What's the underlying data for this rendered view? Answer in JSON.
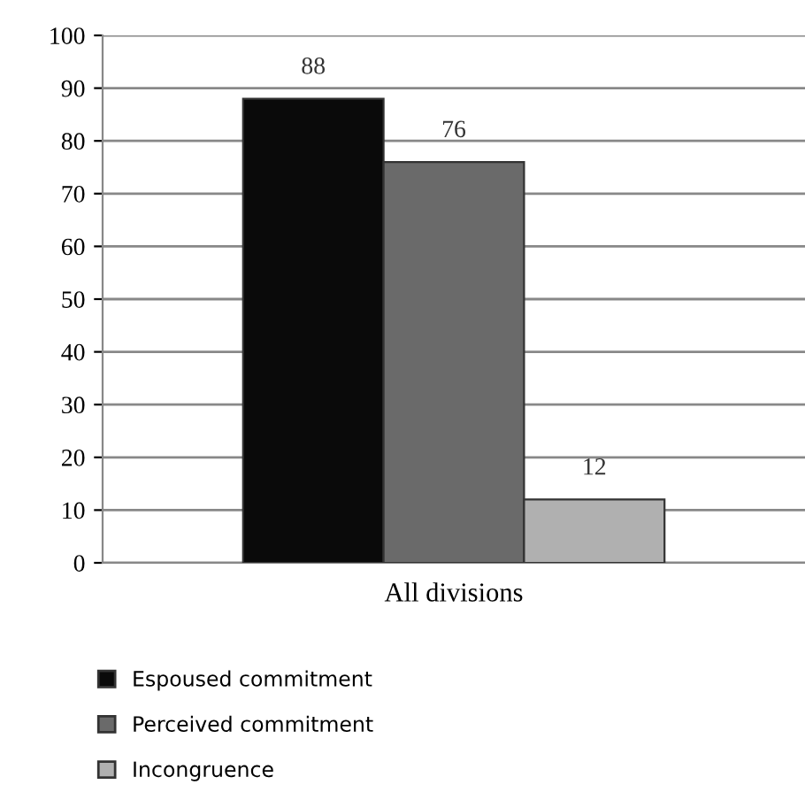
{
  "chart_data": {
    "type": "bar",
    "categories": [
      "All divisions"
    ],
    "series": [
      {
        "name": "Espoused commitment",
        "color": "#0a0a0a",
        "values": [
          88
        ]
      },
      {
        "name": "Perceived commitment",
        "color": "#6a6a6a",
        "values": [
          76
        ]
      },
      {
        "name": "Incongruence",
        "color": "#b0b0b0",
        "values": [
          12
        ]
      }
    ],
    "ylim": [
      0,
      100
    ],
    "yticks": [
      0,
      10,
      20,
      30,
      40,
      50,
      60,
      70,
      80,
      90,
      100
    ],
    "grid": "y",
    "legend": "bottom",
    "data_labels": true
  }
}
